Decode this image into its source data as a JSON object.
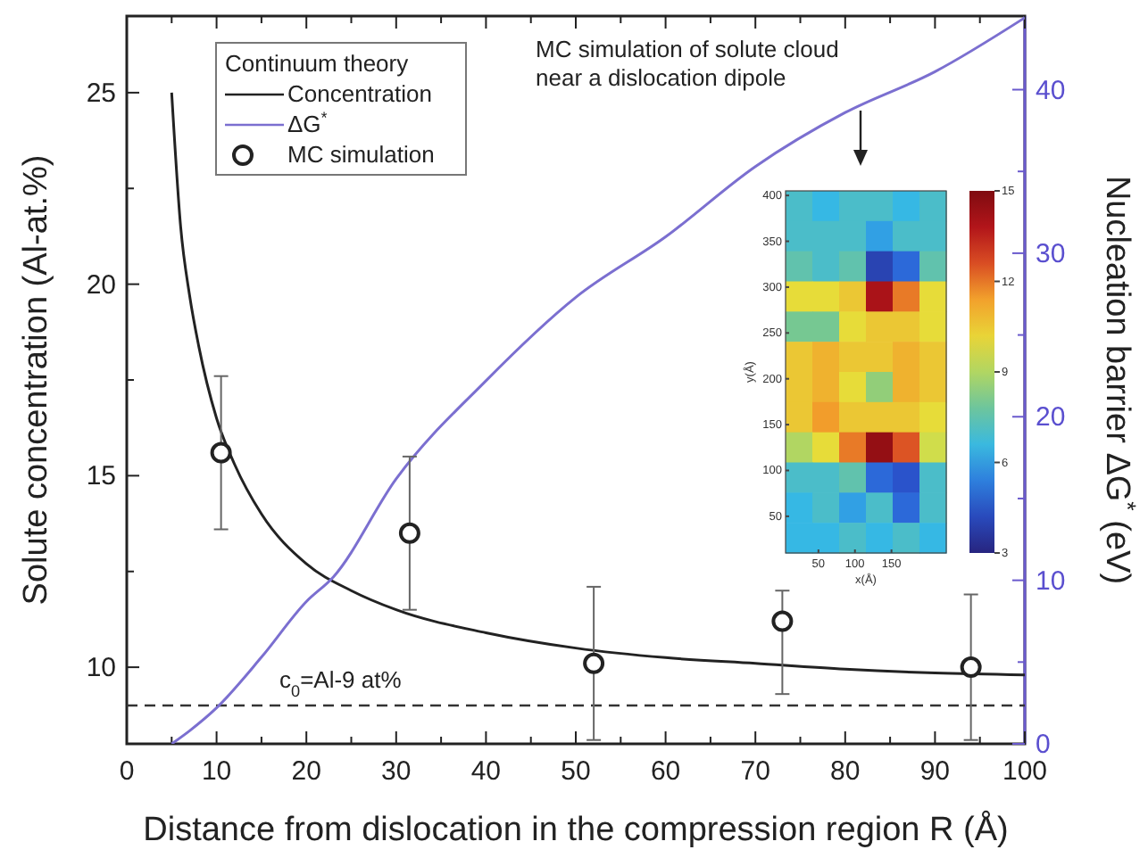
{
  "chart_data": [
    {
      "type": "line",
      "xlabel": "Distance from dislocation in the compression region R (Å)",
      "ylabel": "Solute concentration (Al-at.%)",
      "y2label": "Nucleation barrier ΔG$^{*}$ (eV)",
      "legend_title": "Continuum theory",
      "legend": "top left",
      "annotations": [
        "MC simulation of solute cloud near a dislocation dipole"
      ],
      "xlim": [
        0,
        100
      ],
      "xticks": [
        0,
        {
          "value": 5,
          "label": null
        },
        10,
        {
          "value": 15,
          "label": null
        },
        20,
        {
          "value": 25,
          "label": null
        },
        30,
        {
          "value": 35,
          "label": null
        },
        40,
        {
          "value": 45,
          "label": null
        },
        50,
        {
          "value": 55,
          "label": null
        },
        60,
        {
          "value": 65,
          "label": null
        },
        70,
        {
          "value": 75,
          "label": null
        },
        80,
        {
          "value": 85,
          "label": null
        },
        90,
        {
          "value": 95,
          "label": null
        },
        100
      ],
      "ylim": [
        8,
        27
      ],
      "yticks": [
        10,
        {
          "value": 12.5,
          "label": null
        },
        15,
        {
          "value": 17.5,
          "label": null
        },
        20,
        {
          "value": 22.5,
          "label": null
        },
        25
      ],
      "y2lim": [
        0,
        44.5
      ],
      "y2ticks": [
        0,
        {
          "value": 5,
          "label": null
        },
        10,
        {
          "value": 15,
          "label": null
        },
        20,
        {
          "value": 25,
          "label": null
        },
        30,
        {
          "value": 35,
          "label": null
        },
        40
      ],
      "ref_lines": [
        {
          "axis": "y",
          "value": 9,
          "label": "c$_{0}$=Al-9 at%",
          "color": "#333333",
          "line_style": "dashed"
        }
      ],
      "series": [
        {
          "name": "Concentration",
          "type": "line",
          "color": "#222222",
          "marker": "none",
          "x": [
            5,
            6,
            7,
            8,
            10,
            12,
            15,
            20,
            25,
            30,
            40,
            50,
            60,
            70,
            80,
            90,
            100
          ],
          "values": [
            25,
            21.5,
            19.7,
            18.4,
            16.5,
            15.3,
            14,
            12.7,
            12,
            11.5,
            10.9,
            10.5,
            10.25,
            10.1,
            9.95,
            9.85,
            9.8
          ]
        },
        {
          "name": "ΔG$^{*}$",
          "type": "line",
          "color": "#7b6fd0",
          "marker": "none",
          "axis": "y2",
          "x": [
            5,
            7,
            10,
            15,
            20,
            23,
            30,
            40,
            50,
            60,
            70,
            80,
            90,
            100
          ],
          "values": [
            0,
            0.8,
            2.2,
            5.3,
            8.7,
            10.2,
            16.2,
            22.2,
            27.3,
            31,
            35.3,
            38.6,
            41.1,
            44.4
          ]
        },
        {
          "name": "MC simulation",
          "type": "scatter",
          "color": "#222222",
          "marker": "circle",
          "x": [
            10.5,
            31.5,
            52,
            73,
            94
          ],
          "values": [
            15.6,
            13.5,
            10.1,
            11.2,
            10
          ],
          "errors": [
            2,
            2,
            2,
            [
              9.3,
              12.0
            ],
            1.9
          ]
        }
      ]
    },
    {
      "type": "heatmap",
      "xlabel": "x(Å)",
      "ylabel": "y(Å)",
      "xlim": [
        5,
        225
      ],
      "xticks": [
        50,
        100,
        150
      ],
      "ylim": [
        10,
        405
      ],
      "yticks": [
        50,
        100,
        150,
        200,
        250,
        300,
        350,
        400
      ],
      "clim": [
        3,
        15
      ],
      "cticks": [
        3,
        6,
        9,
        12,
        15
      ],
      "cells": [
        [
          7,
          6.5,
          7,
          7,
          6.5,
          7
        ],
        [
          7,
          7,
          7,
          6,
          7,
          7
        ],
        [
          7.5,
          7,
          7.5,
          4,
          5,
          7.5
        ],
        [
          10,
          10,
          10.5,
          14,
          12,
          10
        ],
        [
          8,
          8,
          10,
          10.5,
          10.5,
          10
        ],
        [
          10.5,
          11,
          10.5,
          10.5,
          11,
          10.5
        ],
        [
          10.5,
          11,
          10,
          8.5,
          11,
          10.5
        ],
        [
          10.5,
          11.5,
          10.5,
          10.5,
          10.5,
          10
        ],
        [
          9,
          10,
          12,
          14.5,
          12.5,
          9.5
        ],
        [
          7,
          7,
          7.5,
          5,
          4.5,
          7
        ],
        [
          6.5,
          7,
          6,
          7,
          5,
          7
        ],
        [
          6.5,
          6.5,
          7,
          6.5,
          7,
          6.5
        ]
      ]
    }
  ]
}
